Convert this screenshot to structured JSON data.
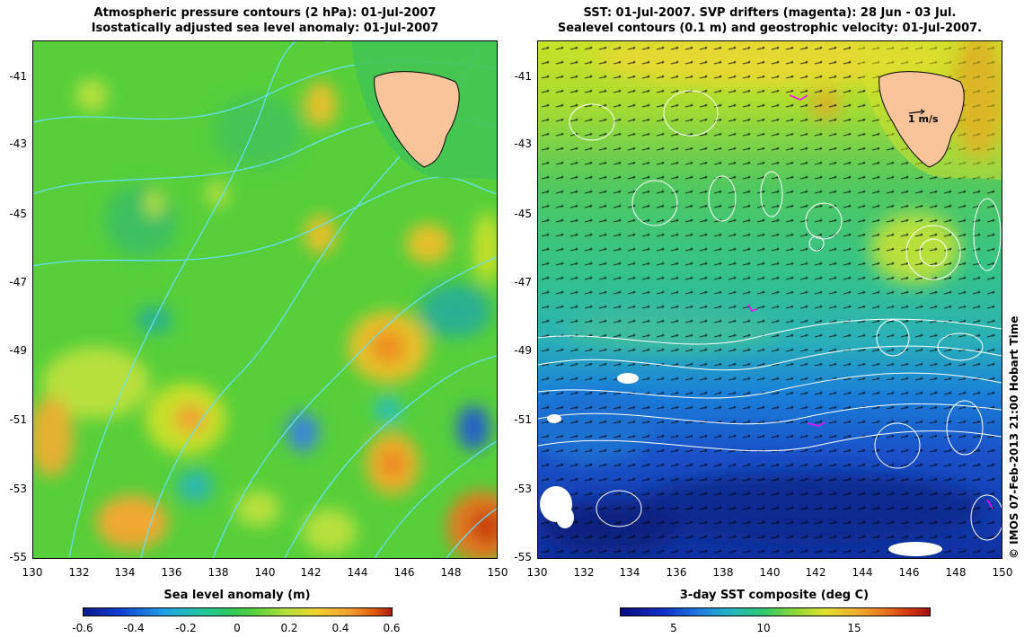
{
  "left_panel": {
    "title_line1": "Atmospheric pressure contours (2 hPa): 01-Jul-2007",
    "title_line2": "Isostatically adjusted sea level anomaly: 01-Jul-2007",
    "y_ticks": [
      "-41",
      "-43",
      "-45",
      "-47",
      "-49",
      "-51",
      "-53",
      "-55"
    ],
    "x_ticks": [
      "130",
      "132",
      "134",
      "136",
      "138",
      "140",
      "142",
      "144",
      "146",
      "148",
      "150"
    ],
    "colorbar_title": "Sea level anomaly (m)",
    "colorbar_ticks": [
      "-0.6",
      "-0.4",
      "-0.2",
      "0",
      "0.2",
      "0.4",
      "0.6"
    ]
  },
  "right_panel": {
    "title_line1": "SST: 01-Jul-2007. SVP drifters (magenta): 28 Jun - 03 Jul.",
    "title_line2": "Sealevel contours (0.1 m) and geostrophic velocity: 01-Jul-2007.",
    "y_ticks": [
      "-41",
      "-43",
      "-45",
      "-47",
      "-49",
      "-51",
      "-53",
      "-55"
    ],
    "x_ticks": [
      "130",
      "132",
      "134",
      "136",
      "138",
      "140",
      "142",
      "144",
      "146",
      "148",
      "150"
    ],
    "scale_label": "1 m/s",
    "colorbar_title": "3-day SST composite (deg C)",
    "colorbar_ticks": [
      "5",
      "10",
      "15"
    ]
  },
  "credit": "© IMOS 07-Feb-2013 21:00 Hobart Time",
  "colors": {
    "land": "#f9c49a",
    "contour_cyan": "#66e0ff",
    "drifter": "#ff00ff",
    "sla_base": "#5ad23c",
    "sst_warm": "#d8e62a",
    "sst_mid": "#33cc66",
    "sst_cold": "#1a3ccc"
  }
}
